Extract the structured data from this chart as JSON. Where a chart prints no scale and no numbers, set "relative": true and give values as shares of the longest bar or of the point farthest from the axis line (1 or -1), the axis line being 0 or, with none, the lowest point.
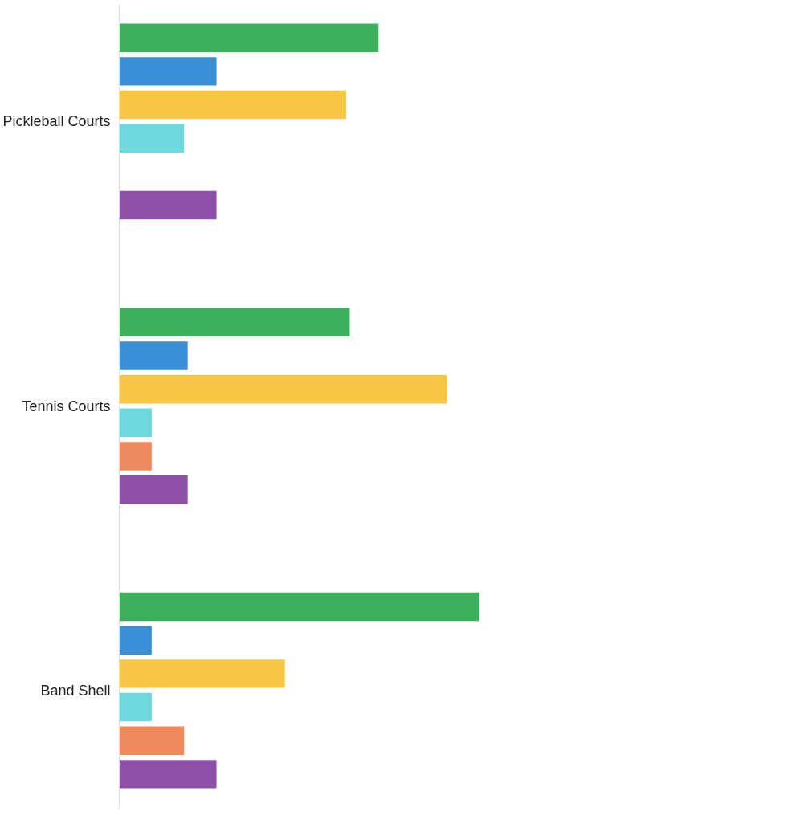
{
  "chart_data": {
    "type": "bar",
    "orientation": "horizontal",
    "relative": true,
    "grid": false,
    "categories": [
      "Pickleball Courts",
      "Tennis Courts",
      "Band Shell"
    ],
    "series": [
      {
        "color": "#3cb05a",
        "values": [
          0.72,
          0.64,
          1
        ]
      },
      {
        "color": "#3a8fd6",
        "values": [
          0.27,
          0.19,
          0.09
        ]
      },
      {
        "color": "#f7c744",
        "values": [
          0.63,
          0.91,
          0.46
        ]
      },
      {
        "color": "#6dd9dd",
        "values": [
          0.18,
          0.09,
          0.09
        ]
      },
      {
        "color": "#f08a5d",
        "values": [
          null,
          0.09,
          0.18
        ]
      },
      {
        "color": "#8e4fa8",
        "values": [
          0.27,
          0.19,
          0.27
        ]
      }
    ]
  }
}
